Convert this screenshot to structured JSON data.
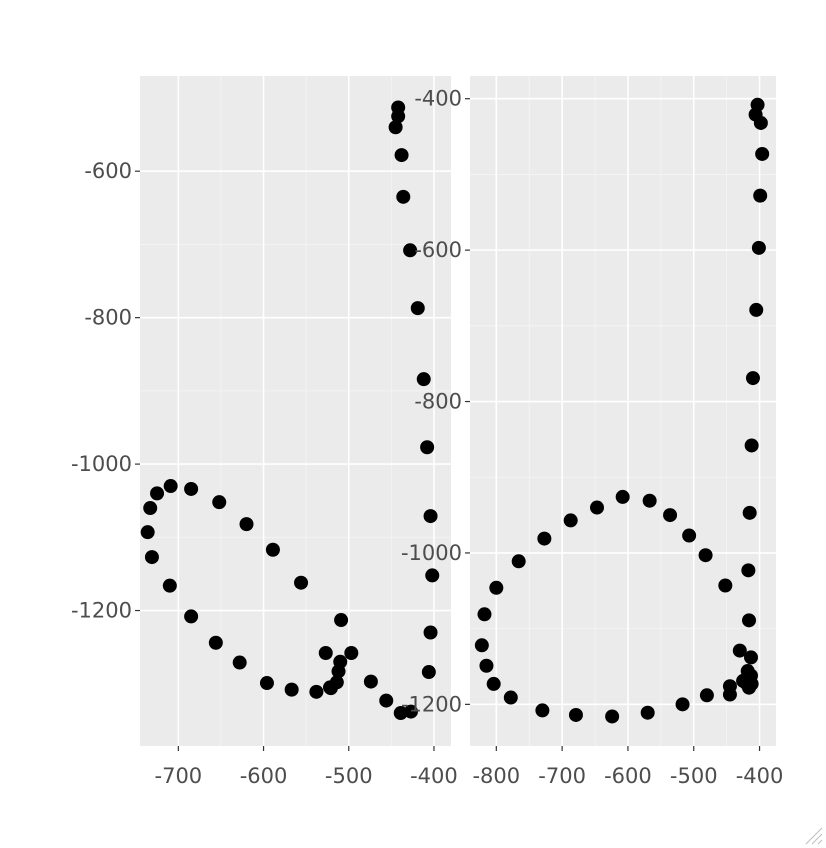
{
  "chart_data": [
    {
      "type": "scatter",
      "title": "",
      "xlabel": "",
      "ylabel": "",
      "grid": true,
      "legend": "none",
      "xlim": [
        -745,
        -380
      ],
      "ylim": [
        -1385,
        -470
      ],
      "xticks": [
        -700,
        -600,
        -500,
        -400
      ],
      "yticks": [
        -600,
        -800,
        -1000,
        -1200
      ],
      "point_color": "#000000",
      "panel_color": "#ebebeb",
      "series": [
        {
          "x": [
            -442,
            -442,
            -445,
            -438,
            -436,
            -428,
            -419,
            -412,
            -408,
            -404,
            -402,
            -404,
            -406,
            -427,
            -439,
            -456,
            -474,
            -497,
            -510,
            -514,
            -521,
            -527,
            -509,
            -512,
            -522,
            -538,
            -567,
            -596,
            -628,
            -656,
            -685,
            -710,
            -731,
            -736,
            -733,
            -725,
            -709,
            -685,
            -652,
            -620,
            -589,
            -556
          ],
          "y": [
            -513,
            -525,
            -540,
            -578,
            -635,
            -708,
            -787,
            -884,
            -977,
            -1071,
            -1152,
            -1230,
            -1284,
            -1338,
            -1340,
            -1323,
            -1297,
            -1258,
            -1270,
            -1298,
            -1306,
            -1258,
            -1213,
            -1283,
            -1305,
            -1311,
            -1308,
            -1299,
            -1271,
            -1244,
            -1208,
            -1166,
            -1127,
            -1093,
            -1060,
            -1040,
            -1030,
            -1034,
            -1052,
            -1082,
            -1117,
            -1162
          ]
        }
      ]
    },
    {
      "type": "scatter",
      "title": "",
      "xlabel": "",
      "ylabel": "",
      "grid": true,
      "legend": "none",
      "xlim": [
        -840,
        -375
      ],
      "ylim": [
        -1255,
        -370
      ],
      "xticks": [
        -800,
        -700,
        -600,
        -500,
        -400
      ],
      "yticks": [
        -400,
        -600,
        -800,
        -1000,
        -1200
      ],
      "point_color": "#000000",
      "panel_color": "#ebebeb",
      "series": [
        {
          "x": [
            -403,
            -406,
            -398,
            -396,
            -399,
            -401,
            -405,
            -410,
            -412,
            -415,
            -417,
            -416,
            -413,
            -418,
            -413,
            -425,
            -416,
            -420,
            -412,
            -416,
            -445,
            -430,
            -452,
            -482,
            -507,
            -536,
            -567,
            -608,
            -647,
            -687,
            -727,
            -766,
            -800,
            -818,
            -822,
            -815,
            -804,
            -778,
            -730,
            -679,
            -624,
            -570,
            -517,
            -480,
            -445
          ],
          "y": [
            -408,
            -421,
            -432,
            -473,
            -528,
            -597,
            -679,
            -769,
            -858,
            -947,
            -1023,
            -1089,
            -1138,
            -1156,
            -1162,
            -1169,
            -1171,
            -1172,
            -1173,
            -1178,
            -1187,
            -1129,
            -1043,
            -1003,
            -977,
            -950,
            -931,
            -926,
            -940,
            -957,
            -981,
            -1011,
            -1046,
            -1081,
            -1122,
            -1149,
            -1173,
            -1191,
            -1208,
            -1214,
            -1216,
            -1211,
            -1200,
            -1188,
            -1176
          ]
        }
      ]
    }
  ]
}
